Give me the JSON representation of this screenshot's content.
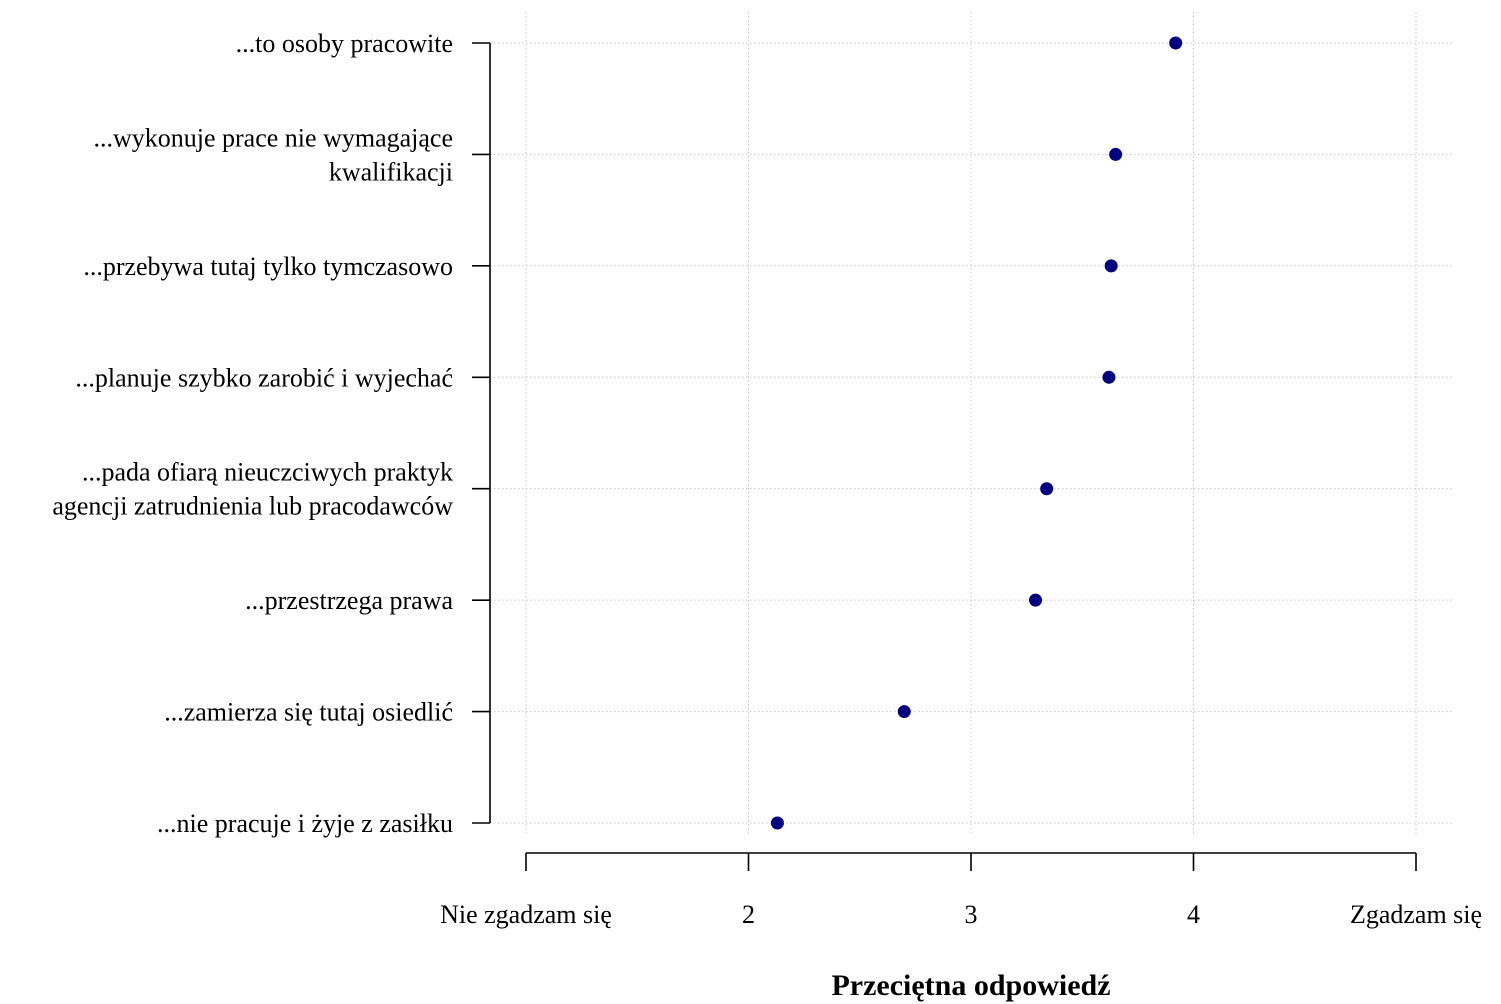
{
  "chart_data": {
    "type": "scatter",
    "title": "",
    "xlabel": "Przeciętna odpowiedź",
    "ylabel": "",
    "xlim": [
      1,
      5
    ],
    "grid": true,
    "marker_color": "#000080",
    "x_tick_values": [
      1,
      2,
      3,
      4,
      5
    ],
    "x_tick_labels": [
      "Nie zgadzam się",
      "2",
      "3",
      "4",
      "Zgadzam się"
    ],
    "categories": [
      [
        "...to osoby pracowite"
      ],
      [
        "...wykonuje prace nie wymagające",
        "kwalifikacji"
      ],
      [
        "...przebywa tutaj tylko tymczasowo"
      ],
      [
        "...planuje szybko zarobić i wyjechać"
      ],
      [
        "...pada ofiarą nieuczciwych praktyk",
        "agencji zatrudnienia lub pracodawców"
      ],
      [
        "...przestrzega prawa"
      ],
      [
        "...zamierza się tutaj osiedlić"
      ],
      [
        "...nie pracuje i żyje z zasiłku"
      ]
    ],
    "values": [
      3.92,
      3.65,
      3.63,
      3.62,
      3.34,
      3.29,
      2.7,
      2.13
    ]
  }
}
